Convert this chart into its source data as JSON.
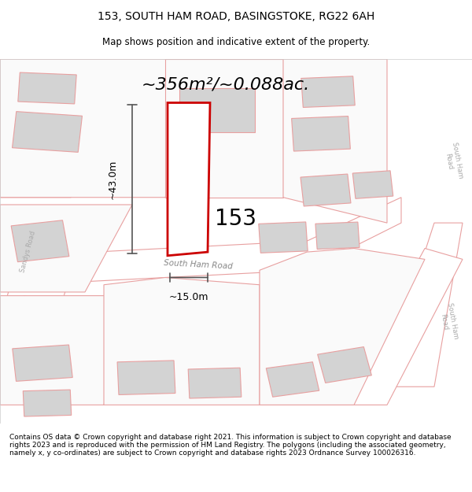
{
  "title": "153, SOUTH HAM ROAD, BASINGSTOKE, RG22 6AH",
  "subtitle": "Map shows position and indicative extent of the property.",
  "area_text": "~356m²/~0.088ac.",
  "label_153": "153",
  "dim_horizontal": "~15.0m",
  "dim_vertical": "~43.0m",
  "road_label_1": "South Ham Road",
  "road_label_2": "South Ham Road",
  "road_label_3": "Sandys Road",
  "footer": "Contains OS data © Crown copyright and database right 2021. This information is subject to Crown copyright and database rights 2023 and is reproduced with the permission of HM Land Registry. The polygons (including the associated geometry, namely x, y co-ordinates) are subject to Crown copyright and database rights 2023 Ordnance Survey 100026316.",
  "bg_color": "#f5f5f5",
  "map_bg": "#ffffff",
  "road_fill": "#ffffff",
  "building_fill": "#d3d3d3",
  "outline_color": "#e8a0a0",
  "highlight_color": "#cc0000",
  "road_outline": "#e8a0a0",
  "text_color": "#333333",
  "dim_color": "#555555",
  "title_fontsize": 10,
  "subtitle_fontsize": 8.5,
  "area_fontsize": 16,
  "label_fontsize": 20,
  "footer_fontsize": 6.5
}
